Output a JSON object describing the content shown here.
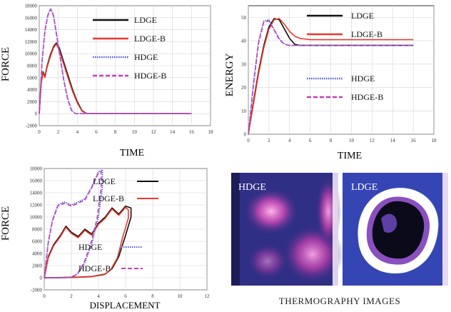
{
  "colors": {
    "ldge": "#111111",
    "ldge_b": "#e8392e",
    "hdge": "#4a5bd6",
    "hdge_b": "#c23fbf",
    "grid": "#d6d6d6",
    "axis": "#333333"
  },
  "chart_data": [
    {
      "type": "line",
      "ylabel": "FORCE",
      "xlabel": "TIME",
      "xlim": [
        0,
        18
      ],
      "ylim": [
        -2000,
        18000
      ],
      "xticks": [
        "0",
        "2",
        "4",
        "6",
        "8",
        "10",
        "12",
        "14",
        "16",
        "18"
      ],
      "yticks": [
        "-2000",
        "0",
        "2000",
        "4000",
        "6000",
        "8000",
        "10000",
        "12000",
        "14000",
        "16000",
        "18000"
      ],
      "grid": true,
      "legend_position": "top-right",
      "series": [
        {
          "name": "LDGE",
          "style": "solid",
          "points": [
            [
              0,
              0
            ],
            [
              0.2,
              5200
            ],
            [
              0.4,
              7000
            ],
            [
              0.6,
              6200
            ],
            [
              0.8,
              7800
            ],
            [
              1.1,
              9500
            ],
            [
              1.5,
              11200
            ],
            [
              1.8,
              11800
            ],
            [
              2.1,
              11000
            ],
            [
              2.5,
              9000
            ],
            [
              3,
              6500
            ],
            [
              3.5,
              4000
            ],
            [
              4,
              2000
            ],
            [
              4.5,
              500
            ],
            [
              5,
              0
            ],
            [
              6,
              0
            ],
            [
              8,
              0
            ],
            [
              10,
              0
            ],
            [
              12,
              0
            ],
            [
              14,
              0
            ],
            [
              16,
              0
            ]
          ]
        },
        {
          "name": "LDGE-B",
          "style": "solid",
          "points": [
            [
              0,
              0
            ],
            [
              0.2,
              5000
            ],
            [
              0.4,
              6800
            ],
            [
              0.6,
              6000
            ],
            [
              0.8,
              7600
            ],
            [
              1.1,
              9200
            ],
            [
              1.5,
              11000
            ],
            [
              1.8,
              11600
            ],
            [
              2.1,
              10600
            ],
            [
              2.5,
              8600
            ],
            [
              3,
              6100
            ],
            [
              3.5,
              3700
            ],
            [
              4,
              1800
            ],
            [
              4.5,
              400
            ],
            [
              5,
              0
            ],
            [
              6,
              0
            ],
            [
              8,
              0
            ],
            [
              10,
              0
            ],
            [
              12,
              0
            ],
            [
              14,
              0
            ],
            [
              16,
              0
            ]
          ]
        },
        {
          "name": "HDGE",
          "style": "dotted",
          "points": [
            [
              0,
              0
            ],
            [
              0.3,
              9000
            ],
            [
              0.6,
              14000
            ],
            [
              0.9,
              16500
            ],
            [
              1.2,
              17600
            ],
            [
              1.5,
              16500
            ],
            [
              1.8,
              13500
            ],
            [
              2.2,
              9500
            ],
            [
              2.6,
              5500
            ],
            [
              3,
              2500
            ],
            [
              3.4,
              600
            ],
            [
              3.8,
              0
            ],
            [
              5,
              0
            ],
            [
              8,
              0
            ],
            [
              12,
              0
            ],
            [
              16,
              0
            ]
          ]
        },
        {
          "name": "HDGE-B",
          "style": "dashed",
          "points": [
            [
              0,
              0
            ],
            [
              0.3,
              8800
            ],
            [
              0.6,
              13800
            ],
            [
              0.9,
              16300
            ],
            [
              1.2,
              17400
            ],
            [
              1.5,
              16300
            ],
            [
              1.8,
              13300
            ],
            [
              2.2,
              9300
            ],
            [
              2.6,
              5300
            ],
            [
              3,
              2300
            ],
            [
              3.4,
              500
            ],
            [
              3.8,
              0
            ],
            [
              5,
              0
            ],
            [
              8,
              0
            ],
            [
              12,
              0
            ],
            [
              16,
              0
            ]
          ]
        }
      ]
    },
    {
      "type": "line",
      "ylabel": "ENERGY",
      "xlabel": "TIME",
      "xlim": [
        0,
        18
      ],
      "ylim": [
        0,
        55
      ],
      "xticks": [
        "0",
        "2",
        "4",
        "6",
        "8",
        "10",
        "12",
        "14",
        "16",
        "18"
      ],
      "yticks": [
        "0",
        "10",
        "20",
        "30",
        "40",
        "50"
      ],
      "grid": true,
      "legend_position": "right",
      "series": [
        {
          "name": "LDGE",
          "style": "solid",
          "points": [
            [
              0,
              0
            ],
            [
              0.5,
              14
            ],
            [
              1,
              27
            ],
            [
              1.5,
              38
            ],
            [
              2,
              46
            ],
            [
              2.5,
              49.5
            ],
            [
              3,
              49
            ],
            [
              3.5,
              45
            ],
            [
              4,
              41
            ],
            [
              4.5,
              38.5
            ],
            [
              5,
              38
            ],
            [
              6,
              38
            ],
            [
              8,
              38
            ],
            [
              10,
              38
            ],
            [
              12,
              38
            ],
            [
              14,
              38
            ],
            [
              16,
              38
            ]
          ]
        },
        {
          "name": "LDGE-B",
          "style": "solid",
          "points": [
            [
              0,
              0
            ],
            [
              0.5,
              13
            ],
            [
              1,
              26
            ],
            [
              1.5,
              37
            ],
            [
              2,
              45
            ],
            [
              2.5,
              49
            ],
            [
              3,
              49.5
            ],
            [
              3.5,
              47
            ],
            [
              4,
              44
            ],
            [
              4.5,
              42
            ],
            [
              5,
              41
            ],
            [
              6,
              40.5
            ],
            [
              8,
              40.5
            ],
            [
              10,
              40.5
            ],
            [
              12,
              40.5
            ],
            [
              14,
              40.5
            ],
            [
              16,
              40.5
            ]
          ]
        },
        {
          "name": "HDGE",
          "style": "dotted",
          "points": [
            [
              0,
              0
            ],
            [
              0.5,
              22
            ],
            [
              1,
              40
            ],
            [
              1.5,
              48.5
            ],
            [
              2,
              49
            ],
            [
              2.5,
              45
            ],
            [
              3,
              41
            ],
            [
              3.5,
              38.5
            ],
            [
              4,
              38
            ],
            [
              6,
              38
            ],
            [
              8,
              38
            ],
            [
              12,
              38
            ],
            [
              16,
              38
            ]
          ]
        },
        {
          "name": "HDGE-B",
          "style": "dashed",
          "points": [
            [
              0,
              0
            ],
            [
              0.5,
              21
            ],
            [
              1,
              39
            ],
            [
              1.5,
              48
            ],
            [
              2,
              48.5
            ],
            [
              2.5,
              44.5
            ],
            [
              3,
              40.5
            ],
            [
              3.5,
              38.5
            ],
            [
              4,
              38
            ],
            [
              6,
              38
            ],
            [
              8,
              38
            ],
            [
              12,
              38
            ],
            [
              16,
              38
            ]
          ]
        }
      ]
    },
    {
      "type": "line",
      "ylabel": "FORCE",
      "xlabel": "DISPLACEMENT",
      "xlim": [
        0,
        12
      ],
      "ylim": [
        -2000,
        18000
      ],
      "xticks": [
        "0",
        "2",
        "4",
        "6",
        "8",
        "10",
        "12"
      ],
      "yticks": [
        "-2000",
        "0",
        "2000",
        "4000",
        "6000",
        "8000",
        "10000",
        "12000",
        "14000",
        "16000",
        "18000"
      ],
      "grid": true,
      "legend_position": "right",
      "series": [
        {
          "name": "LDGE",
          "style": "solid",
          "points": [
            [
              0,
              0
            ],
            [
              0.3,
              3500
            ],
            [
              0.7,
              5500
            ],
            [
              1.2,
              7000
            ],
            [
              1.6,
              8500
            ],
            [
              2,
              7500
            ],
            [
              2.5,
              6800
            ],
            [
              3,
              8000
            ],
            [
              3.5,
              7200
            ],
            [
              4,
              9000
            ],
            [
              4.5,
              10000
            ],
            [
              5,
              11500
            ],
            [
              5.5,
              10500
            ],
            [
              6,
              11800
            ],
            [
              6.4,
              11500
            ],
            [
              6.4,
              10000
            ],
            [
              6,
              7000
            ],
            [
              5.5,
              3500
            ],
            [
              5,
              1500
            ],
            [
              4.5,
              600
            ],
            [
              3.5,
              200
            ],
            [
              2.5,
              100
            ],
            [
              1.5,
              50
            ],
            [
              0.5,
              0
            ],
            [
              0,
              0
            ]
          ]
        },
        {
          "name": "LDGE-B",
          "style": "solid",
          "points": [
            [
              0,
              0
            ],
            [
              0.3,
              3300
            ],
            [
              0.7,
              5300
            ],
            [
              1.2,
              6800
            ],
            [
              1.6,
              8300
            ],
            [
              2,
              7300
            ],
            [
              2.5,
              6600
            ],
            [
              3,
              7800
            ],
            [
              3.5,
              7000
            ],
            [
              4,
              8800
            ],
            [
              4.5,
              9800
            ],
            [
              5,
              11300
            ],
            [
              5.5,
              10300
            ],
            [
              6,
              11600
            ],
            [
              6.2,
              11200
            ],
            [
              6.2,
              9800
            ],
            [
              5.8,
              6800
            ],
            [
              5.4,
              3300
            ],
            [
              4.9,
              1300
            ],
            [
              4.4,
              500
            ],
            [
              3.4,
              150
            ],
            [
              2.4,
              50
            ],
            [
              1.4,
              0
            ],
            [
              0.5,
              0
            ],
            [
              0,
              0
            ]
          ]
        },
        {
          "name": "HDGE",
          "style": "dotted",
          "points": [
            [
              0,
              0
            ],
            [
              0.3,
              6000
            ],
            [
              0.6,
              9500
            ],
            [
              1,
              12000
            ],
            [
              1.5,
              12500
            ],
            [
              2,
              12000
            ],
            [
              2.5,
              12500
            ],
            [
              3,
              13000
            ],
            [
              3.5,
              15000
            ],
            [
              4,
              17500
            ],
            [
              4.3,
              17800
            ],
            [
              4.3,
              15000
            ],
            [
              4,
              10000
            ],
            [
              3.5,
              5500
            ],
            [
              3,
              2500
            ],
            [
              2.5,
              700
            ],
            [
              2,
              100
            ],
            [
              1,
              0
            ],
            [
              0,
              0
            ]
          ]
        },
        {
          "name": "HDGE-B",
          "style": "dashed",
          "points": [
            [
              0,
              0
            ],
            [
              0.3,
              5800
            ],
            [
              0.6,
              9300
            ],
            [
              1,
              11800
            ],
            [
              1.5,
              12300
            ],
            [
              2,
              11800
            ],
            [
              2.5,
              12300
            ],
            [
              3,
              12800
            ],
            [
              3.5,
              14800
            ],
            [
              4,
              17300
            ],
            [
              4.2,
              17500
            ],
            [
              4.2,
              14800
            ],
            [
              3.9,
              9800
            ],
            [
              3.4,
              5300
            ],
            [
              2.9,
              2300
            ],
            [
              2.4,
              500
            ],
            [
              1.9,
              50
            ],
            [
              1,
              0
            ],
            [
              0,
              0
            ]
          ]
        }
      ]
    }
  ],
  "thermo": {
    "caption": "THERMOGRAPHY IMAGES",
    "left_label": "HDGE",
    "right_label": "LDGE"
  }
}
